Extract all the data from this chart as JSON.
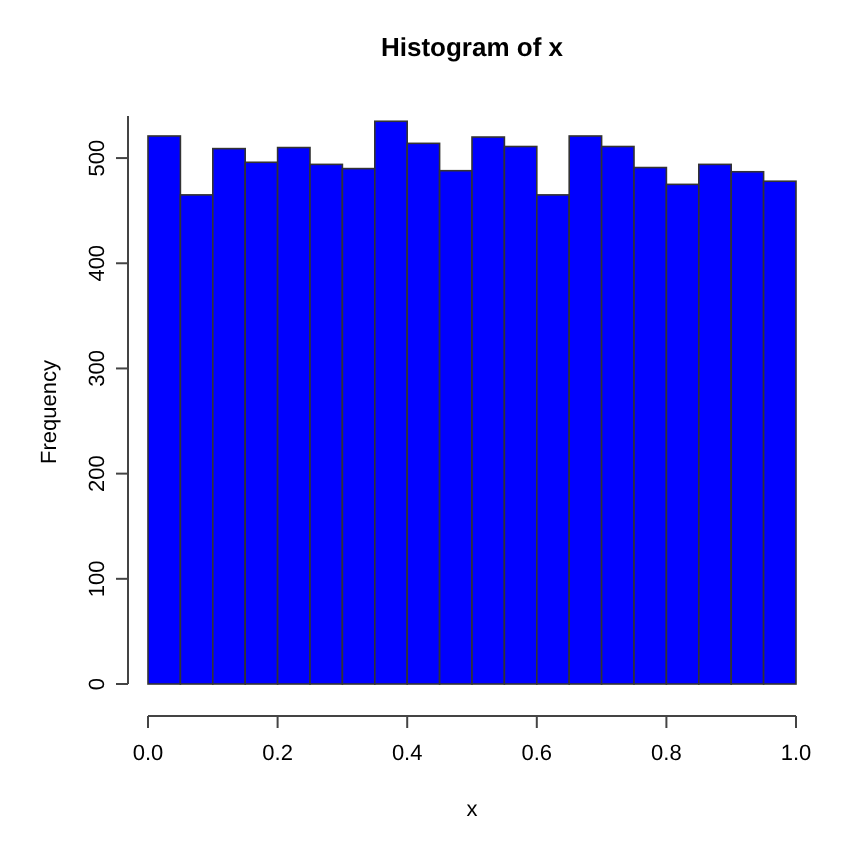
{
  "chart_data": {
    "type": "histogram",
    "title": "Histogram of x",
    "xlabel": "x",
    "ylabel": "Frequency",
    "bins": [
      0,
      0.05,
      0.1,
      0.15,
      0.2,
      0.25,
      0.3,
      0.35,
      0.4,
      0.45,
      0.5,
      0.55,
      0.6,
      0.65,
      0.7,
      0.75,
      0.8,
      0.85,
      0.9,
      0.95,
      1
    ],
    "values": [
      521,
      465,
      509,
      496,
      510,
      494,
      490,
      535,
      514,
      488,
      520,
      511,
      465,
      521,
      511,
      491,
      475,
      494,
      487,
      478
    ],
    "color": "#0000ff",
    "xlim": [
      0,
      1
    ],
    "xticks": [
      {
        "value": 0,
        "label": "0.0"
      },
      0.2,
      0.4,
      0.6,
      0.8,
      {
        "value": 1,
        "label": "1.0"
      }
    ],
    "ylim": [
      0,
      540
    ],
    "yticks": [
      0,
      100,
      200,
      300,
      400,
      500
    ],
    "grid": false
  }
}
